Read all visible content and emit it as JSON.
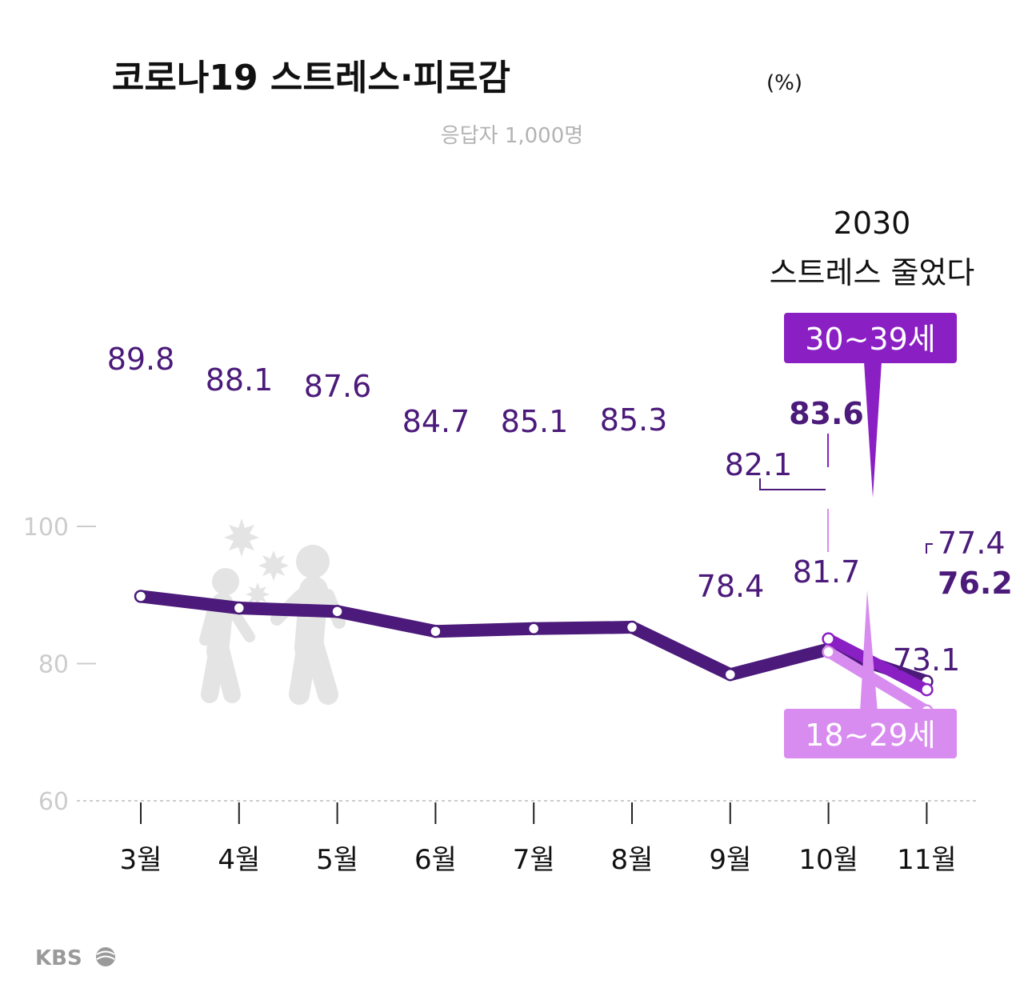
{
  "title": "코로나19 스트레스·피로감",
  "unit": "(%)",
  "subtitle": "응답자 1,000명",
  "annotation": {
    "line1": "2030",
    "line2": "스트레스 줄었다"
  },
  "logo_text": "KBS",
  "colors": {
    "total": "#4b1a7a",
    "age_30s": "#8a1fc4",
    "age_20s": "#d88cf0",
    "axis": "#cccccc",
    "illustration": "#e4e4e4"
  },
  "chart_data": {
    "type": "line",
    "categories": [
      "3월",
      "4월",
      "5월",
      "6월",
      "7월",
      "8월",
      "9월",
      "10월",
      "11월"
    ],
    "yticks": [
      "100",
      "80",
      "60"
    ],
    "ylim": [
      60,
      100
    ],
    "series": [
      {
        "values": [
          89.8,
          88.1,
          87.6,
          84.7,
          85.1,
          85.3,
          78.4,
          82.1,
          77.4
        ],
        "labels": [
          "89.8",
          "88.1",
          "87.6",
          "84.7",
          "85.1",
          "85.3",
          "78.4",
          "82.1",
          "77.4"
        ]
      },
      {
        "name": "30~39세",
        "values": [
          null,
          null,
          null,
          null,
          null,
          null,
          null,
          83.6,
          76.2
        ],
        "labels": [
          "83.6",
          "76.2"
        ]
      },
      {
        "name": "18~29세",
        "values": [
          null,
          null,
          null,
          null,
          null,
          null,
          null,
          81.7,
          73.1
        ],
        "labels": [
          "81.7",
          "73.1"
        ]
      }
    ]
  }
}
